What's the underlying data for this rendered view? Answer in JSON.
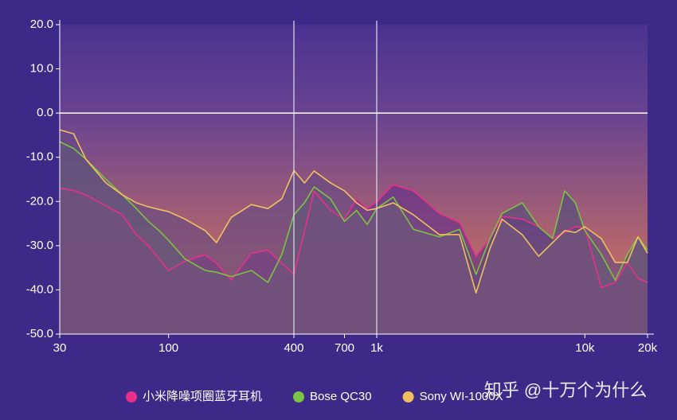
{
  "chart_data": {
    "type": "line",
    "log_x": true,
    "x": [
      30,
      35,
      40,
      50,
      60,
      70,
      80,
      90,
      100,
      120,
      150,
      170,
      200,
      250,
      300,
      350,
      400,
      450,
      500,
      600,
      700,
      800,
      900,
      1000,
      1200,
      1500,
      2000,
      2500,
      3000,
      3500,
      4000,
      5000,
      6000,
      7000,
      8000,
      9000,
      10000,
      12000,
      14000,
      16000,
      18000,
      20000
    ],
    "series": [
      {
        "name": "小米降噪项圈蓝牙耳机",
        "color": "#e8308a",
        "values": [
          -17,
          -17.5,
          -18.5,
          -21,
          -23,
          -27.5,
          -30,
          -33,
          -35.6,
          -33.5,
          -32,
          -34,
          -37.8,
          -31.7,
          -31,
          -34,
          -36.5,
          -26.6,
          -17.6,
          -22,
          -24,
          -19.4,
          -21.6,
          -20,
          -16.2,
          -17.6,
          -22.7,
          -24.8,
          -32.4,
          -28.4,
          -23.4,
          -24,
          -25.7,
          -28.4,
          -27,
          -25.7,
          -26,
          -39.5,
          -38.3,
          -33.8,
          -37.4,
          -38.3
        ]
      },
      {
        "name": "Bose QC30",
        "color": "#7cc243",
        "values": [
          -6.5,
          -8,
          -10.4,
          -15,
          -18.5,
          -21.6,
          -24.5,
          -26.6,
          -28.8,
          -33,
          -35.6,
          -36,
          -37,
          -35.6,
          -38.3,
          -32,
          -23,
          -20.3,
          -16.7,
          -19.4,
          -24.5,
          -22,
          -25.2,
          -21.6,
          -19,
          -26.3,
          -28,
          -26.3,
          -36.5,
          -28.4,
          -22.7,
          -20.3,
          -25.7,
          -28.4,
          -17.6,
          -20.3,
          -26.6,
          -32,
          -37.8,
          -32,
          -28,
          -31
        ]
      },
      {
        "name": "Sony WI-1000X",
        "color": "#f0c060",
        "values": [
          -3.8,
          -4.7,
          -10.4,
          -15.8,
          -18.5,
          -20.3,
          -21.2,
          -21.8,
          -22.3,
          -24,
          -26.6,
          -29.3,
          -23.6,
          -20.7,
          -21.6,
          -19.4,
          -13,
          -15.8,
          -13.1,
          -15.8,
          -17.6,
          -20.3,
          -22,
          -21.6,
          -20.3,
          -23,
          -27.5,
          -27.5,
          -40.7,
          -30.6,
          -24,
          -27.5,
          -32.4,
          -29.3,
          -26.6,
          -27,
          -25.7,
          -28.4,
          -33.8,
          -33.8,
          -28,
          -31.7
        ]
      }
    ],
    "xlim": [
      30,
      20000
    ],
    "xticks": [
      30,
      100,
      400,
      700,
      {
        "value": 1000,
        "label": "1k"
      },
      {
        "value": 10000,
        "label": "10k"
      },
      {
        "value": 20000,
        "label": "20k"
      }
    ],
    "ylim": [
      -50,
      20
    ],
    "yticks": [
      {
        "value": 20,
        "label": "20.0"
      },
      {
        "value": 10,
        "label": "10.0"
      },
      {
        "value": 0,
        "label": "0.0"
      },
      {
        "value": -10,
        "label": "-10.0"
      },
      {
        "value": -20,
        "label": "-20.0"
      },
      {
        "value": -30,
        "label": "-30.0"
      },
      {
        "value": -40,
        "label": "-40.0"
      },
      {
        "value": -50,
        "label": "-50.0"
      }
    ],
    "reference_x": [
      400,
      1000
    ],
    "reference_y": [
      0
    ],
    "legend": "bottom",
    "watermark": "知乎 @十万个为什么"
  }
}
